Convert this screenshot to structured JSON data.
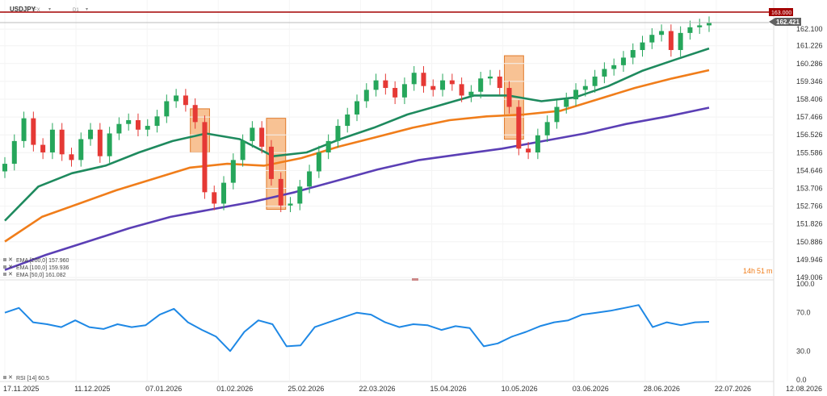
{
  "header": {
    "symbol": "USDJPY",
    "symbol_suffix": "FX",
    "timeframe": "D1"
  },
  "price_axis": {
    "ticks": [
      "162.100",
      "161.226",
      "160.286",
      "159.346",
      "158.406",
      "157.466",
      "156.526",
      "155.586",
      "154.646",
      "153.706",
      "152.766",
      "151.826",
      "150.886",
      "149.946",
      "149.006"
    ],
    "current_price_label": "162.421",
    "level_label": "163.000"
  },
  "date_axis": {
    "ticks": [
      "17.11.2025",
      "11.12.2025",
      "07.01.2026",
      "01.02.2026",
      "25.02.2026",
      "22.03.2026",
      "15.04.2026",
      "10.05.2026",
      "03.06.2026",
      "28.06.2026",
      "22.07.2026",
      "12.08.2026"
    ]
  },
  "legend": {
    "ema200": "EMA [200,0] 157.960",
    "ema100": "EMA [100,0] 159.936",
    "ema50": "EMA [50,0] 161.082",
    "rsi": "RSI [14] 60.5"
  },
  "countdown": {
    "hours": "14h",
    "minutes": "51",
    "unit": "m"
  },
  "rsi_axis": {
    "ticks": [
      "100.0",
      "70.0",
      "30.0",
      "0.0"
    ]
  },
  "colors": {
    "bull": "#26a65b",
    "bear": "#e53935",
    "ema50": "#1e8a5e",
    "ema100": "#f07d1a",
    "ema200": "#5b3fb5",
    "rsi": "#1e88e5",
    "highlight": "#f5a25b",
    "level": "#a40000"
  },
  "chart_data": [
    {
      "type": "candlestick",
      "x_range": [
        "17.11.2025",
        "12.08.2026"
      ],
      "ylim": [
        149.006,
        163.0
      ],
      "horizontal_level": 163.0,
      "last_price": 162.421,
      "approx_closes": [
        155.0,
        156.2,
        157.4,
        156.0,
        155.6,
        156.8,
        155.5,
        155.2,
        156.3,
        156.8,
        155.4,
        156.6,
        157.1,
        157.3,
        156.8,
        157.0,
        157.5,
        158.3,
        158.6,
        158.1,
        157.2,
        153.5,
        152.9,
        154.0,
        155.2,
        156.2,
        156.9,
        155.9,
        154.2,
        152.8,
        152.9,
        153.8,
        154.6,
        155.6,
        156.2,
        157.0,
        157.6,
        158.3,
        158.9,
        159.4,
        159.0,
        158.5,
        159.2,
        159.8,
        159.1,
        158.9,
        159.4,
        159.2,
        158.6,
        158.8,
        159.5,
        159.6,
        159.0,
        158.0,
        155.8,
        155.6,
        156.5,
        157.2,
        158.0,
        158.4,
        158.9,
        159.1,
        159.6,
        160.0,
        160.2,
        160.6,
        161.0,
        161.4,
        161.8,
        162.0,
        161.0,
        161.9,
        162.2,
        162.3,
        162.421
      ],
      "highlighted_zones": 3
    },
    {
      "type": "line",
      "name": "EMA [50,0] 161.082",
      "approx_values": [
        152.0,
        153.8,
        154.5,
        154.9,
        155.6,
        156.2,
        156.6,
        156.3,
        155.4,
        155.6,
        156.3,
        156.9,
        157.6,
        158.1,
        158.6,
        158.6,
        158.3,
        158.5,
        159.1,
        159.9,
        160.5,
        161.082
      ]
    },
    {
      "type": "line",
      "name": "EMA [100,0] 159.936",
      "approx_values": [
        150.9,
        152.2,
        152.9,
        153.6,
        154.2,
        154.8,
        155.0,
        154.9,
        155.3,
        155.9,
        156.4,
        156.9,
        157.3,
        157.5,
        157.6,
        157.8,
        158.4,
        159.0,
        159.5,
        159.936
      ]
    },
    {
      "type": "line",
      "name": "EMA [200,0] 157.960",
      "approx_values": [
        149.4,
        150.2,
        150.9,
        151.6,
        152.2,
        152.6,
        153.0,
        153.5,
        154.1,
        154.7,
        155.2,
        155.5,
        155.8,
        156.2,
        156.6,
        157.1,
        157.5,
        157.96
      ]
    },
    {
      "type": "line",
      "name": "RSI [14] 60.5",
      "ylim": [
        0,
        100
      ],
      "approx_values": [
        70,
        75,
        60,
        58,
        55,
        62,
        55,
        53,
        58,
        55,
        57,
        68,
        74,
        60,
        52,
        45,
        30,
        50,
        62,
        58,
        35,
        36,
        55,
        60,
        65,
        70,
        68,
        60,
        55,
        58,
        57,
        52,
        56,
        54,
        35,
        38,
        45,
        50,
        56,
        60,
        62,
        68,
        70,
        72,
        75,
        78,
        55,
        60,
        57,
        60,
        60.5
      ]
    }
  ]
}
